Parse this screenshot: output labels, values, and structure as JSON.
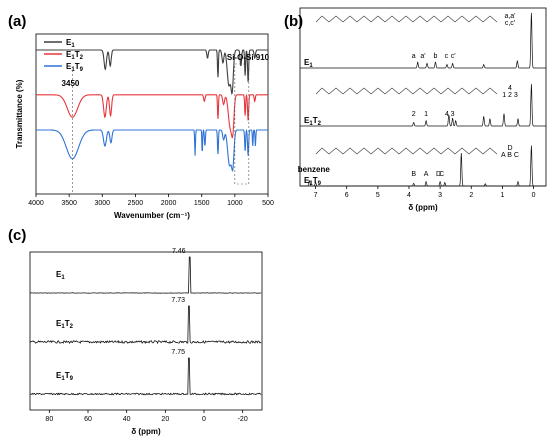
{
  "panels": {
    "a": "(a)",
    "b": "(b)",
    "c": "(c)"
  },
  "colors": {
    "E1": "#3f3f3f",
    "E1T2": "#e8373c",
    "E1T9": "#2f74d6",
    "nmr": "#000000"
  },
  "chart_data": [
    {
      "id": "a",
      "type": "line",
      "title": "",
      "xlabel": "Wavenumber (cm⁻¹)",
      "ylabel": "Transmittance (%)",
      "xlim": [
        4000,
        500
      ],
      "xticks": [
        "4000",
        "3500",
        "3000",
        "2500",
        "2000",
        "1500",
        "1000",
        "500"
      ],
      "legend": {
        "placement": "top-left",
        "entries": [
          {
            "base": "E",
            "sub": "1",
            "base2": "",
            "sub2": "",
            "color": "E1"
          },
          {
            "base": "E",
            "sub": "1",
            "base2": "T",
            "sub2": "2",
            "color": "E1T2"
          },
          {
            "base": "E",
            "sub": "1",
            "base2": "T",
            "sub2": "9",
            "color": "E1T9"
          }
        ]
      },
      "annotations": [
        {
          "text": "3450",
          "x": 3450
        },
        {
          "text": "Si-O-Si  910",
          "x": 910
        }
      ],
      "series": [
        {
          "name": "E1",
          "color": "E1",
          "baseline": 0.9,
          "bands": [
            [
              3450,
              0.0,
              130
            ],
            [
              2955,
              0.12,
              25
            ],
            [
              2880,
              0.1,
              20
            ],
            [
              1412,
              0.05,
              15
            ],
            [
              1255,
              0.17,
              10
            ],
            [
              1180,
              0.08,
              20
            ],
            [
              1090,
              0.22,
              35
            ],
            [
              1040,
              0.24,
              25
            ],
            [
              910,
              0.1,
              15
            ],
            [
              845,
              0.16,
              10
            ],
            [
              800,
              0.2,
              12
            ],
            [
              700,
              0.05,
              15
            ]
          ]
        },
        {
          "name": "E1T2",
          "color": "E1T2",
          "baseline": 0.62,
          "bands": [
            [
              3450,
              0.14,
              110
            ],
            [
              2960,
              0.14,
              28
            ],
            [
              2875,
              0.13,
              22
            ],
            [
              1460,
              0.04,
              15
            ],
            [
              1255,
              0.15,
              10
            ],
            [
              1170,
              0.06,
              20
            ],
            [
              1070,
              0.2,
              40
            ],
            [
              1030,
              0.18,
              25
            ],
            [
              845,
              0.13,
              10
            ],
            [
              800,
              0.16,
              12
            ],
            [
              700,
              0.04,
              12
            ]
          ]
        },
        {
          "name": "E1T9",
          "color": "E1T9",
          "baseline": 0.4,
          "bands": [
            [
              3450,
              0.18,
              130
            ],
            [
              2960,
              0.1,
              30
            ],
            [
              2870,
              0.08,
              22
            ],
            [
              1600,
              0.16,
              8
            ],
            [
              1492,
              0.14,
              8
            ],
            [
              1452,
              0.1,
              10
            ],
            [
              1255,
              0.15,
              10
            ],
            [
              1170,
              0.06,
              20
            ],
            [
              1080,
              0.22,
              40
            ],
            [
              1030,
              0.2,
              25
            ],
            [
              845,
              0.13,
              10
            ],
            [
              800,
              0.16,
              12
            ],
            [
              730,
              0.1,
              8
            ],
            [
              690,
              0.1,
              8
            ]
          ]
        }
      ]
    },
    {
      "id": "b",
      "type": "line",
      "title": "",
      "xlabel": "δ (ppm)",
      "ylabel": "",
      "xlim": [
        7.5,
        -0.4
      ],
      "xticks": [
        "7",
        "6",
        "5",
        "4",
        "3",
        "2",
        "1",
        "0"
      ],
      "spectra": [
        {
          "label_base": "E",
          "label_sub": "1",
          "label_base2": "",
          "label_sub2": "",
          "peaks": [
            [
              3.72,
              0.1
            ],
            [
              3.42,
              0.08
            ],
            [
              3.15,
              0.1
            ],
            [
              2.78,
              0.06
            ],
            [
              2.6,
              0.08
            ],
            [
              1.6,
              0.06
            ],
            [
              0.52,
              0.12
            ],
            [
              0.07,
              0.95
            ]
          ],
          "assignments": [
            {
              "text": "a",
              "x": 3.85
            },
            {
              "text": "a'",
              "x": 3.55
            },
            {
              "text": "b",
              "x": 3.15
            },
            {
              "text": "c",
              "x": 2.8
            },
            {
              "text": "c'",
              "x": 2.58
            }
          ],
          "struct_label": "a,a'\nc,c'"
        },
        {
          "label_base": "E",
          "label_sub": "1",
          "label_base2": "T",
          "label_sub2": "2",
          "peaks": [
            [
              3.85,
              0.08
            ],
            [
              3.45,
              0.12
            ],
            [
              2.72,
              0.25
            ],
            [
              2.6,
              0.18
            ],
            [
              2.5,
              0.12
            ],
            [
              1.6,
              0.22
            ],
            [
              1.4,
              0.16
            ],
            [
              0.95,
              0.28
            ],
            [
              0.5,
              0.16
            ],
            [
              0.07,
              0.95
            ]
          ],
          "assignments": [
            {
              "text": "2",
              "x": 3.85
            },
            {
              "text": "1",
              "x": 3.45
            },
            {
              "text": "4",
              "x": 2.78
            },
            {
              "text": "3",
              "x": 2.6
            }
          ],
          "struct_label": "4\n1 2 3"
        },
        {
          "label_base": "E",
          "label_sub": "1",
          "label_base2": "T",
          "label_sub2": "9",
          "peaks": [
            [
              7.2,
              0.12
            ],
            [
              7.0,
              0.08
            ],
            [
              3.85,
              0.06
            ],
            [
              3.45,
              0.1
            ],
            [
              3.0,
              0.1
            ],
            [
              2.85,
              0.08
            ],
            [
              2.32,
              0.75
            ],
            [
              1.55,
              0.05
            ],
            [
              0.5,
              0.1
            ],
            [
              0.07,
              0.92
            ]
          ],
          "assignments": [
            {
              "text": "B",
              "x": 3.85
            },
            {
              "text": "A",
              "x": 3.45
            },
            {
              "text": "D",
              "x": 3.05
            },
            {
              "text": "C",
              "x": 2.95
            }
          ],
          "struct_label": "D\nA B C"
        }
      ],
      "annotations": [
        {
          "text": "benzene",
          "x": 7.25
        }
      ]
    },
    {
      "id": "c",
      "type": "line",
      "title": "",
      "xlabel": "δ (ppm)",
      "ylabel": "",
      "xlim": [
        90,
        -30
      ],
      "xticks": [
        "80",
        "60",
        "40",
        "20",
        "0",
        "-20"
      ],
      "spectra": [
        {
          "label_base": "E",
          "label_sub": "1",
          "label_base2": "",
          "label_sub2": "",
          "peak_ppm": 7.46,
          "peak_text": "7.46",
          "noise": 0.01
        },
        {
          "label_base": "E",
          "label_sub": "1",
          "label_base2": "T",
          "label_sub2": "2",
          "peak_ppm": 7.73,
          "peak_text": "7.73",
          "noise": 0.06
        },
        {
          "label_base": "E",
          "label_sub": "1",
          "label_base2": "T",
          "label_sub2": "9",
          "peak_ppm": 7.75,
          "peak_text": "7.75",
          "noise": 0.04
        }
      ]
    }
  ],
  "icons": [
    "chemical-structure-E1-icon",
    "chemical-structure-E1T2-icon",
    "chemical-structure-E1T9-icon"
  ]
}
